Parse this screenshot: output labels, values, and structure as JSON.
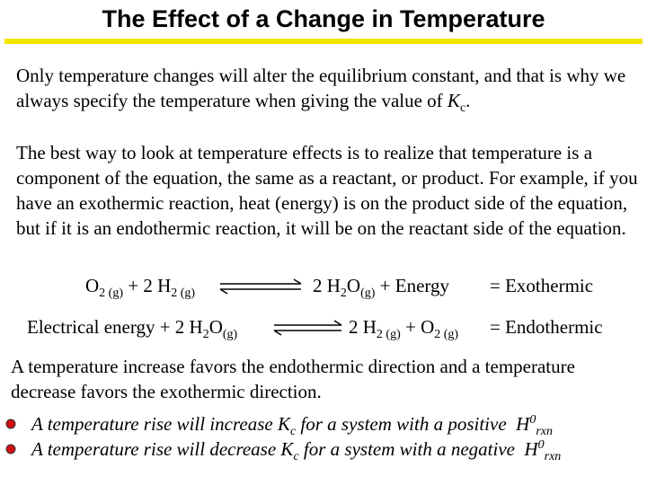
{
  "title": "The Effect of a Change in Temperature",
  "paragraphs": [
    [
      "Only temperature changes will alter the equilibrium constant, and that is why we always specify the temperature when giving the value of ",
      "K",
      "c",
      "."
    ],
    [
      "The best way to look at temperature effects is to realize that temperature is a component of the equation, the same as a reactant, or product. For example, if you have an exothermic reaction, heat (energy) is on the product side of the equation, but if it is an endothermic reaction, it will be on the reactant side of the equation."
    ],
    [
      "A temperature increase favors the endothermic direction and a temperature decrease favors the exothermic direction."
    ]
  ],
  "equations": [
    {
      "reactants": [
        "O",
        "2 (g)",
        " + 2 H",
        "2 (g)"
      ],
      "products": [
        "2 H",
        "2",
        "O",
        "(g)",
        " + Energy"
      ],
      "label": "= Exothermic"
    },
    {
      "reactants": [
        "Electrical energy + 2 H",
        "2",
        "O",
        "(g)"
      ],
      "products": [
        "2 H",
        "2 (g)",
        " + O",
        "2 (g)"
      ],
      "label": "= Endothermic"
    }
  ],
  "bullets": [
    [
      "A temperature rise will increase ",
      "K",
      "c",
      " for a system with a positive ",
      "H",
      "0",
      "rxn"
    ],
    [
      "A temperature rise will decrease ",
      "K",
      "c",
      " for a system with a negative ",
      "H",
      "0",
      "rxn"
    ]
  ]
}
